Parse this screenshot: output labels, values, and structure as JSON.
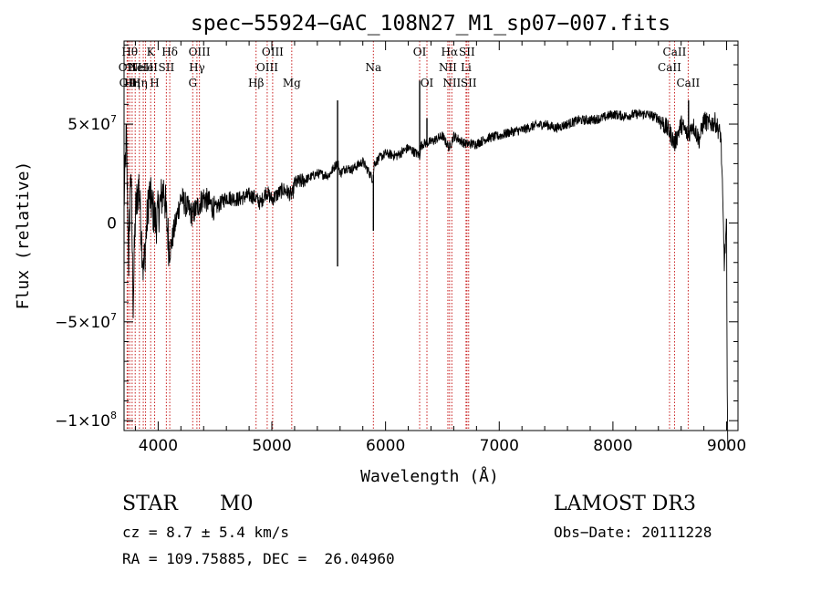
{
  "chart_data": {
    "type": "line",
    "title": "spec−55924−GAC_108N27_M1_sp07−007.fits",
    "xlabel": "Wavelength (Å)",
    "ylabel": "Flux (relative)",
    "xlim": [
      3700,
      9100
    ],
    "ylim": [
      -105000000,
      92000000
    ],
    "x_ticks": [
      {
        "value": 4000,
        "label": "4000"
      },
      {
        "value": 5000,
        "label": "5000"
      },
      {
        "value": 6000,
        "label": "6000"
      },
      {
        "value": 7000,
        "label": "7000"
      },
      {
        "value": 8000,
        "label": "8000"
      },
      {
        "value": 9000,
        "label": "9000"
      }
    ],
    "y_ticks": [
      {
        "value": 50000000,
        "mant": "5×10",
        "exp": "7"
      },
      {
        "value": 0,
        "mant": "0",
        "exp": ""
      },
      {
        "value": -50000000,
        "mant": "−5×10",
        "exp": "7"
      },
      {
        "value": -100000000,
        "mant": "−1×10",
        "exp": "8"
      }
    ],
    "series": [
      {
        "name": "flux",
        "x": [
          3700,
          3720,
          3740,
          3760,
          3780,
          3800,
          3830,
          3870,
          3920,
          3980,
          4050,
          4100,
          4200,
          4300,
          4400,
          4500,
          4600,
          4700,
          4800,
          4850,
          4900,
          4950,
          5000,
          5100,
          5180,
          5200,
          5300,
          5400,
          5500,
          5580,
          5600,
          5650,
          5700,
          5800,
          5890,
          5900,
          5950,
          6000,
          6100,
          6200,
          6300,
          6310,
          6330,
          6400,
          6500,
          6560,
          6600,
          6700,
          6800,
          6900,
          7000,
          7100,
          7200,
          7300,
          7400,
          7500,
          7600,
          7700,
          7800,
          7900,
          8000,
          8100,
          8200,
          8300,
          8400,
          8500,
          8542,
          8600,
          8662,
          8700,
          8760,
          8800,
          8850,
          8900,
          8950,
          8980,
          9000,
          9005,
          9010
        ],
        "y": [
          9000000,
          45000000,
          -20000000,
          30000000,
          -40000000,
          5000000,
          20000000,
          -25000000,
          15000000,
          0,
          18000000,
          -15000000,
          13000000,
          4000000,
          13000000,
          7000000,
          13000000,
          12000000,
          14000000,
          13000000,
          10000000,
          16000000,
          12000000,
          17000000,
          14000000,
          20000000,
          22000000,
          25000000,
          24000000,
          31000000,
          25000000,
          28000000,
          27000000,
          31000000,
          22000000,
          30000000,
          33000000,
          35000000,
          34000000,
          38000000,
          34000000,
          39000000,
          40000000,
          41000000,
          44000000,
          38000000,
          44000000,
          40000000,
          40000000,
          43000000,
          44000000,
          46000000,
          47000000,
          49000000,
          50000000,
          48000000,
          50000000,
          52000000,
          52000000,
          53000000,
          55000000,
          54000000,
          55000000,
          55000000,
          53000000,
          46000000,
          40000000,
          50000000,
          44000000,
          50000000,
          42000000,
          52000000,
          50000000,
          51000000,
          44000000,
          -20000000,
          0,
          -90000000,
          -110000000
        ]
      }
    ],
    "spikes": [
      {
        "x": 5578,
        "y": 62000000
      },
      {
        "x": 5578,
        "y": -22000000
      },
      {
        "x": 5893,
        "y": -4000000
      },
      {
        "x": 6300,
        "y": 72000000
      },
      {
        "x": 6364,
        "y": 53000000
      },
      {
        "x": 8665,
        "y": 62000000
      }
    ],
    "lines": [
      {
        "wave": 3727,
        "label": "OII",
        "row": 2
      },
      {
        "wave": 3734,
        "label": "OII",
        "row": 3
      },
      {
        "wave": 3750,
        "label": "Hθ",
        "row": 1
      },
      {
        "wave": 3771,
        "label": "Hη",
        "row": 3
      },
      {
        "wave": 3798,
        "label": "He",
        "row": 2
      },
      {
        "wave": 3835,
        "label": "Hη",
        "row": 3
      },
      {
        "wave": 3869,
        "label": "NeIII",
        "row": 2
      },
      {
        "wave": 3889,
        "label": "He",
        "row": 2
      },
      {
        "wave": 3934,
        "label": "K",
        "row": 1
      },
      {
        "wave": 3969,
        "label": "H",
        "row": 3
      },
      {
        "wave": 4072,
        "label": "SII",
        "row": 2
      },
      {
        "wave": 4102,
        "label": "Hδ",
        "row": 1
      },
      {
        "wave": 4304,
        "label": "G",
        "row": 3
      },
      {
        "wave": 4341,
        "label": "Hγ",
        "row": 2
      },
      {
        "wave": 4363,
        "label": "OIII",
        "row": 1
      },
      {
        "wave": 4861,
        "label": "Hβ",
        "row": 3
      },
      {
        "wave": 4959,
        "label": "OIII",
        "row": 2
      },
      {
        "wave": 5007,
        "label": "OIII",
        "row": 1
      },
      {
        "wave": 5175,
        "label": "Mg",
        "row": 3
      },
      {
        "wave": 5893,
        "label": "Na",
        "row": 2
      },
      {
        "wave": 6300,
        "label": "OI",
        "row": 1
      },
      {
        "wave": 6364,
        "label": "OI",
        "row": 3
      },
      {
        "wave": 6548,
        "label": "NII",
        "row": 2
      },
      {
        "wave": 6563,
        "label": "Hα",
        "row": 1
      },
      {
        "wave": 6583,
        "label": "NII",
        "row": 3
      },
      {
        "wave": 6708,
        "label": "Li",
        "row": 2
      },
      {
        "wave": 6716,
        "label": "SII",
        "row": 1
      },
      {
        "wave": 6731,
        "label": "SII",
        "row": 3
      },
      {
        "wave": 8498,
        "label": "CaII",
        "row": 2
      },
      {
        "wave": 8542,
        "label": "CaII",
        "row": 1
      },
      {
        "wave": 8662,
        "label": "CaII",
        "row": 3
      }
    ]
  },
  "info": {
    "object_class": "STAR",
    "subclass": "M0",
    "survey": "LAMOST DR3",
    "redshift": "cz = 8.7 ± 5.4 km/s",
    "obs_date": "Obs−Date: 20111228",
    "coords": "RA = 109.75885, DEC =  26.04960"
  },
  "colors": {
    "line_marker": "#c81e1e",
    "spectrum": "#000000",
    "axis": "#000000"
  }
}
